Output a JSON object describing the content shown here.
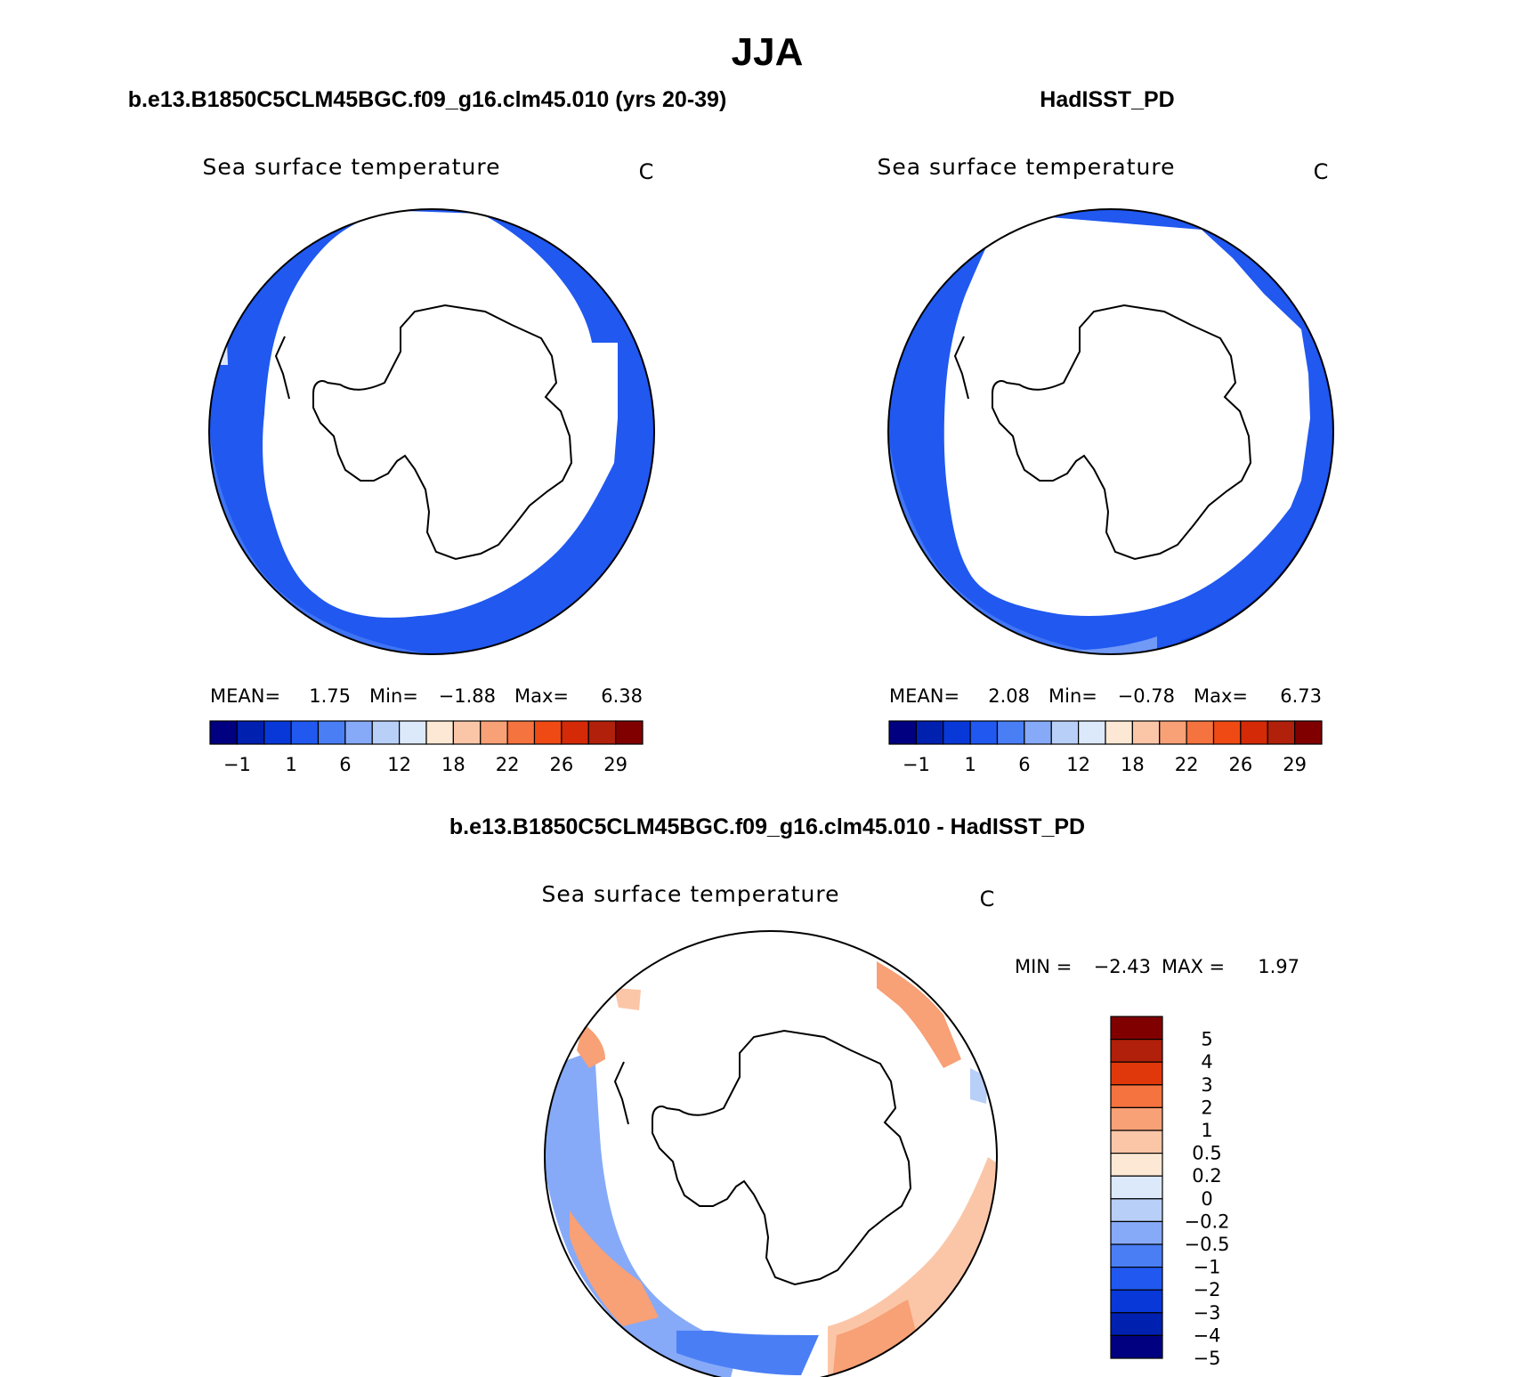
{
  "figure": {
    "season": "JJA",
    "panels": [
      {
        "title": "b.e13.B1850C5CLM45BGC.f09_g16.clm45.010 (yrs 20-39)",
        "variable": "Sea surface temperature",
        "units": "C",
        "stats": {
          "mean_label": "MEAN=",
          "mean": "1.75",
          "min_label": "Min=",
          "min": "−1.88",
          "max_label": "Max=",
          "max": "6.38"
        }
      },
      {
        "title": "HadISST_PD",
        "variable": "Sea surface temperature",
        "units": "C",
        "stats": {
          "mean_label": "MEAN=",
          "mean": "2.08",
          "min_label": "Min=",
          "min": "−0.78",
          "max_label": "Max=",
          "max": "6.73"
        }
      },
      {
        "title": "b.e13.B1850C5CLM45BGC.f09_g16.clm45.010 - HadISST_PD",
        "variable": "Sea surface temperature",
        "units": "C",
        "stats": {
          "min_label": "MIN =",
          "min": "−2.43",
          "max_label": "MAX =",
          "max": "1.97"
        }
      }
    ]
  },
  "chart_data": [
    {
      "type": "heatmap",
      "subtype": "south-polar stereographic contour map",
      "title": "b.e13.B1850C5CLM45BGC.f09_g16.clm45.010 (yrs 20-39)",
      "variable": "Sea surface temperature",
      "units": "C",
      "mean": 1.75,
      "min": -1.88,
      "max": 6.38,
      "colorbar": {
        "orientation": "horizontal",
        "tick_labels": [
          "−1",
          "1",
          "6",
          "12",
          "18",
          "22",
          "26",
          "29"
        ],
        "colors": [
          "#000080",
          "#0020b0",
          "#0838d8",
          "#2058f0",
          "#4a7ef5",
          "#86aaf8",
          "#b8cff8",
          "#dce9fb",
          "#fce8d4",
          "#fbc6a8",
          "#f8a076",
          "#f5733f",
          "#ef4a14",
          "#d42a08",
          "#b0200a",
          "#800000"
        ]
      }
    },
    {
      "type": "heatmap",
      "subtype": "south-polar stereographic contour map",
      "title": "HadISST_PD",
      "variable": "Sea surface temperature",
      "units": "C",
      "mean": 2.08,
      "min": -0.78,
      "max": 6.73,
      "colorbar": {
        "orientation": "horizontal",
        "tick_labels": [
          "−1",
          "1",
          "6",
          "12",
          "18",
          "22",
          "26",
          "29"
        ],
        "colors": [
          "#000080",
          "#0020b0",
          "#0838d8",
          "#2058f0",
          "#4a7ef5",
          "#86aaf8",
          "#b8cff8",
          "#dce9fb",
          "#fce8d4",
          "#fbc6a8",
          "#f8a076",
          "#f5733f",
          "#ef4a14",
          "#d42a08",
          "#b0200a",
          "#800000"
        ]
      }
    },
    {
      "type": "heatmap",
      "subtype": "south-polar stereographic contour map (difference)",
      "title": "b.e13.B1850C5CLM45BGC.f09_g16.clm45.010 - HadISST_PD",
      "variable": "Sea surface temperature",
      "units": "C",
      "min": -2.43,
      "max": 1.97,
      "colorbar": {
        "orientation": "vertical",
        "tick_labels": [
          "5",
          "4",
          "3",
          "2",
          "1",
          "0.5",
          "0.2",
          "0",
          "−0.2",
          "−0.5",
          "−1",
          "−2",
          "−3",
          "−4",
          "−5"
        ],
        "colors": [
          "#800000",
          "#b0200a",
          "#e0380a",
          "#f5733f",
          "#f8a076",
          "#fbc6a8",
          "#fce8d4",
          "#dce9fb",
          "#b8cff8",
          "#86aaf8",
          "#4a7ef5",
          "#2058f0",
          "#0838d8",
          "#0020b0",
          "#000080"
        ]
      }
    }
  ]
}
